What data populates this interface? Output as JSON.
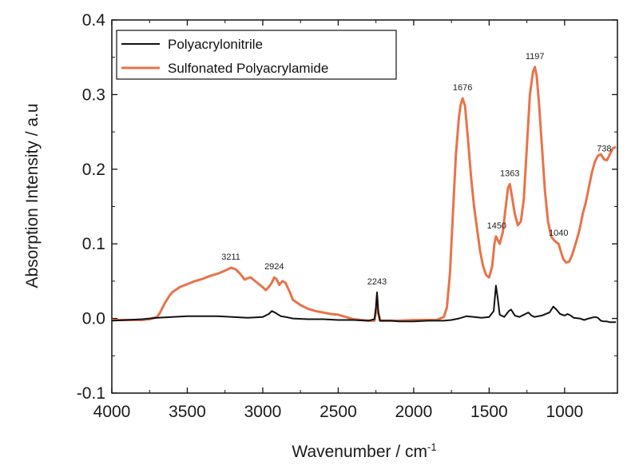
{
  "chart_data": {
    "type": "line",
    "xlabel": "Wavenumber / cm",
    "xlabel_sup": "-1",
    "ylabel": "Absorption Intensity / a.u",
    "xlim": [
      4000,
      650
    ],
    "ylim": [
      -0.1,
      0.4
    ],
    "x_reversed": true,
    "legend_position": "top-left",
    "grid": false,
    "x_ticks": [
      {
        "value": 4000,
        "label": "4000"
      },
      {
        "value": 3500,
        "label": "3500"
      },
      {
        "value": 3000,
        "label": "3000"
      },
      {
        "value": 2500,
        "label": "2500"
      },
      {
        "value": 2000,
        "label": "2000"
      },
      {
        "value": 1500,
        "label": "1500"
      },
      {
        "value": 1000,
        "label": "1000"
      }
    ],
    "y_ticks": [
      {
        "value": -0.1,
        "label": "-0.1"
      },
      {
        "value": 0.0,
        "label": "0.0"
      },
      {
        "value": 0.1,
        "label": "0.1"
      },
      {
        "value": 0.2,
        "label": "0.2"
      },
      {
        "value": 0.3,
        "label": "0.3"
      },
      {
        "value": 0.4,
        "label": "0.4"
      }
    ],
    "series": [
      {
        "name": "Polyacrylonitrile",
        "color": "#111111",
        "points": [
          [
            4000,
            -0.003
          ],
          [
            3900,
            -0.002
          ],
          [
            3800,
            -0.001
          ],
          [
            3700,
            0.001
          ],
          [
            3600,
            0.002
          ],
          [
            3500,
            0.003
          ],
          [
            3400,
            0.003
          ],
          [
            3300,
            0.003
          ],
          [
            3200,
            0.002
          ],
          [
            3100,
            0.001
          ],
          [
            3000,
            0.002
          ],
          [
            2960,
            0.006
          ],
          [
            2940,
            0.01
          ],
          [
            2920,
            0.008
          ],
          [
            2880,
            0.003
          ],
          [
            2850,
            0.002
          ],
          [
            2800,
            0.0
          ],
          [
            2700,
            -0.001
          ],
          [
            2600,
            -0.001
          ],
          [
            2500,
            -0.002
          ],
          [
            2400,
            -0.002
          ],
          [
            2300,
            -0.003
          ],
          [
            2260,
            -0.001
          ],
          [
            2250,
            0.015
          ],
          [
            2243,
            0.035
          ],
          [
            2236,
            0.012
          ],
          [
            2225,
            -0.003
          ],
          [
            2150,
            -0.003
          ],
          [
            2100,
            -0.004
          ],
          [
            2000,
            -0.004
          ],
          [
            1900,
            -0.003
          ],
          [
            1800,
            -0.003
          ],
          [
            1750,
            -0.002
          ],
          [
            1700,
            0.0
          ],
          [
            1650,
            0.003
          ],
          [
            1600,
            0.002
          ],
          [
            1550,
            0.001
          ],
          [
            1500,
            0.002
          ],
          [
            1470,
            0.01
          ],
          [
            1455,
            0.044
          ],
          [
            1445,
            0.03
          ],
          [
            1430,
            0.005
          ],
          [
            1400,
            0.002
          ],
          [
            1370,
            0.01
          ],
          [
            1355,
            0.012
          ],
          [
            1330,
            0.004
          ],
          [
            1300,
            0.002
          ],
          [
            1260,
            0.006
          ],
          [
            1240,
            0.008
          ],
          [
            1220,
            0.004
          ],
          [
            1200,
            0.002
          ],
          [
            1150,
            0.004
          ],
          [
            1100,
            0.008
          ],
          [
            1075,
            0.016
          ],
          [
            1055,
            0.012
          ],
          [
            1030,
            0.006
          ],
          [
            1000,
            0.004
          ],
          [
            980,
            0.006
          ],
          [
            960,
            0.004
          ],
          [
            940,
            0.001
          ],
          [
            900,
            0.0
          ],
          [
            870,
            -0.002
          ],
          [
            840,
            0.0
          ],
          [
            800,
            0.002
          ],
          [
            780,
            0.001
          ],
          [
            760,
            -0.003
          ],
          [
            740,
            -0.004
          ],
          [
            720,
            -0.004
          ],
          [
            700,
            -0.005
          ],
          [
            680,
            -0.005
          ],
          [
            660,
            -0.005
          ]
        ]
      },
      {
        "name": "Sulfonated Polyacrylamide",
        "color": "#e8734a",
        "points": [
          [
            4000,
            -0.002
          ],
          [
            3900,
            -0.002
          ],
          [
            3800,
            -0.002
          ],
          [
            3750,
            -0.001
          ],
          [
            3700,
            0.002
          ],
          [
            3680,
            0.008
          ],
          [
            3650,
            0.02
          ],
          [
            3620,
            0.03
          ],
          [
            3600,
            0.035
          ],
          [
            3550,
            0.042
          ],
          [
            3500,
            0.046
          ],
          [
            3450,
            0.05
          ],
          [
            3400,
            0.053
          ],
          [
            3350,
            0.057
          ],
          [
            3300,
            0.06
          ],
          [
            3250,
            0.064
          ],
          [
            3211,
            0.068
          ],
          [
            3180,
            0.066
          ],
          [
            3150,
            0.06
          ],
          [
            3120,
            0.052
          ],
          [
            3100,
            0.054
          ],
          [
            3080,
            0.055
          ],
          [
            3050,
            0.05
          ],
          [
            3000,
            0.042
          ],
          [
            2980,
            0.038
          ],
          [
            2960,
            0.042
          ],
          [
            2940,
            0.048
          ],
          [
            2924,
            0.055
          ],
          [
            2910,
            0.053
          ],
          [
            2890,
            0.045
          ],
          [
            2870,
            0.05
          ],
          [
            2850,
            0.048
          ],
          [
            2820,
            0.035
          ],
          [
            2800,
            0.025
          ],
          [
            2750,
            0.018
          ],
          [
            2700,
            0.013
          ],
          [
            2650,
            0.01
          ],
          [
            2600,
            0.008
          ],
          [
            2550,
            0.006
          ],
          [
            2500,
            0.005
          ],
          [
            2450,
            0.002
          ],
          [
            2400,
            -0.001
          ],
          [
            2350,
            -0.002
          ],
          [
            2300,
            -0.003
          ],
          [
            2260,
            -0.003
          ],
          [
            2250,
            0.01
          ],
          [
            2243,
            0.03
          ],
          [
            2236,
            0.008
          ],
          [
            2220,
            -0.003
          ],
          [
            2150,
            -0.003
          ],
          [
            2100,
            -0.003
          ],
          [
            2000,
            -0.002
          ],
          [
            1900,
            -0.002
          ],
          [
            1850,
            -0.002
          ],
          [
            1800,
            0.002
          ],
          [
            1780,
            0.015
          ],
          [
            1760,
            0.06
          ],
          [
            1740,
            0.14
          ],
          [
            1720,
            0.22
          ],
          [
            1700,
            0.27
          ],
          [
            1690,
            0.285
          ],
          [
            1676,
            0.295
          ],
          [
            1660,
            0.285
          ],
          [
            1640,
            0.24
          ],
          [
            1620,
            0.19
          ],
          [
            1600,
            0.15
          ],
          [
            1580,
            0.12
          ],
          [
            1560,
            0.09
          ],
          [
            1540,
            0.07
          ],
          [
            1520,
            0.058
          ],
          [
            1500,
            0.055
          ],
          [
            1480,
            0.07
          ],
          [
            1465,
            0.1
          ],
          [
            1455,
            0.11
          ],
          [
            1450,
            0.108
          ],
          [
            1430,
            0.1
          ],
          [
            1410,
            0.115
          ],
          [
            1390,
            0.15
          ],
          [
            1375,
            0.175
          ],
          [
            1363,
            0.18
          ],
          [
            1350,
            0.165
          ],
          [
            1330,
            0.14
          ],
          [
            1310,
            0.125
          ],
          [
            1290,
            0.13
          ],
          [
            1270,
            0.16
          ],
          [
            1250,
            0.23
          ],
          [
            1230,
            0.3
          ],
          [
            1210,
            0.33
          ],
          [
            1197,
            0.337
          ],
          [
            1185,
            0.325
          ],
          [
            1170,
            0.29
          ],
          [
            1150,
            0.23
          ],
          [
            1130,
            0.17
          ],
          [
            1110,
            0.13
          ],
          [
            1090,
            0.11
          ],
          [
            1070,
            0.105
          ],
          [
            1055,
            0.102
          ],
          [
            1040,
            0.1
          ],
          [
            1025,
            0.09
          ],
          [
            1010,
            0.08
          ],
          [
            990,
            0.075
          ],
          [
            970,
            0.076
          ],
          [
            950,
            0.085
          ],
          [
            920,
            0.105
          ],
          [
            900,
            0.12
          ],
          [
            880,
            0.14
          ],
          [
            860,
            0.155
          ],
          [
            840,
            0.175
          ],
          [
            820,
            0.195
          ],
          [
            800,
            0.21
          ],
          [
            780,
            0.218
          ],
          [
            760,
            0.22
          ],
          [
            738,
            0.213
          ],
          [
            720,
            0.212
          ],
          [
            700,
            0.22
          ],
          [
            680,
            0.228
          ],
          [
            660,
            0.23
          ]
        ]
      }
    ],
    "annotations": [
      {
        "text": "3211",
        "x": 3211,
        "y": 0.068
      },
      {
        "text": "2924",
        "x": 2924,
        "y": 0.055
      },
      {
        "text": "2243",
        "x": 2243,
        "y": 0.035
      },
      {
        "text": "1676",
        "x": 1676,
        "y": 0.295
      },
      {
        "text": "1450",
        "x": 1450,
        "y": 0.11
      },
      {
        "text": "1363",
        "x": 1363,
        "y": 0.18
      },
      {
        "text": "1197",
        "x": 1197,
        "y": 0.337
      },
      {
        "text": "1040",
        "x": 1040,
        "y": 0.1
      },
      {
        "text": "738",
        "x": 738,
        "y": 0.213
      }
    ]
  }
}
